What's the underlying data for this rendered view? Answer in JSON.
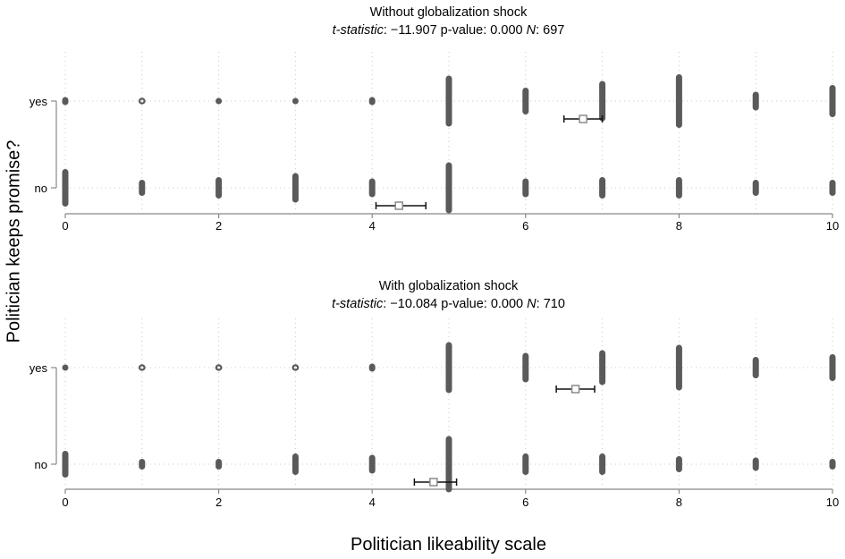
{
  "chart_data": [
    {
      "type": "dot-strip",
      "title": "Without globalization shock",
      "stats": {
        "t_label": "t-statistic",
        "t_value": "−11.907",
        "p_label": "p-value:",
        "p_value": "0.000",
        "n_label": "N",
        "n_value": "697"
      },
      "y_categories": [
        "yes",
        "no"
      ],
      "x_ticks": [
        0,
        2,
        4,
        6,
        8,
        10
      ],
      "xlim": [
        0,
        10
      ],
      "series": [
        {
          "category": "yes",
          "counts": [
            3,
            1,
            2,
            2,
            3,
            19,
            10,
            15,
            20,
            7,
            12
          ],
          "mean": 6.75,
          "ci": [
            6.5,
            7.0
          ]
        },
        {
          "category": "no",
          "counts": [
            14,
            6,
            8,
            11,
            7,
            19,
            7,
            8,
            8,
            6,
            6
          ],
          "mean": 4.35,
          "ci": [
            4.05,
            4.7
          ]
        }
      ]
    },
    {
      "type": "dot-strip",
      "title": "With globalization shock",
      "stats": {
        "t_label": "t-statistic",
        "t_value": "−10.084",
        "p_label": "p-value:",
        "p_value": "0.000",
        "n_label": "N",
        "n_value": "710"
      },
      "y_categories": [
        "yes",
        "no"
      ],
      "x_ticks": [
        0,
        2,
        4,
        6,
        8,
        10
      ],
      "xlim": [
        0,
        10
      ],
      "series": [
        {
          "category": "yes",
          "counts": [
            2,
            1,
            1,
            1,
            3,
            19,
            11,
            13,
            17,
            8,
            10
          ],
          "mean": 6.65,
          "ci": [
            6.4,
            6.9
          ]
        },
        {
          "category": "no",
          "counts": [
            10,
            4,
            4,
            8,
            7,
            21,
            8,
            8,
            6,
            5,
            4
          ],
          "mean": 4.8,
          "ci": [
            4.55,
            5.1
          ]
        }
      ]
    }
  ],
  "y_axis_label": "Politician keeps promise?",
  "x_axis_label": "Politician likeability scale",
  "colors": {
    "marks": "#5a5a5a",
    "grid": "#c8c8c8",
    "axis": "#888888",
    "mean_marker": "#8a8a8a"
  }
}
